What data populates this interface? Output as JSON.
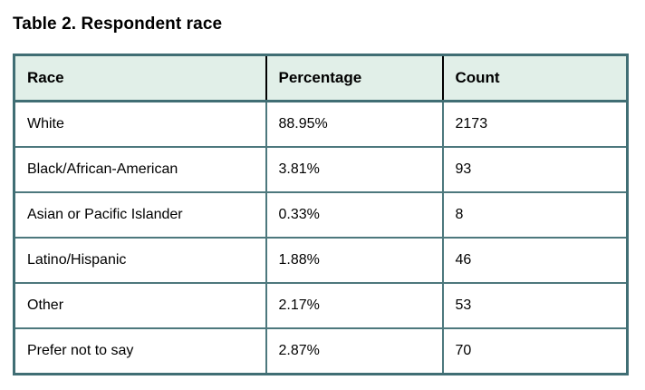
{
  "title": "Table 2. Respondent race",
  "table": {
    "columns": {
      "race": "Race",
      "percentage": "Percentage",
      "count": "Count"
    },
    "rows": [
      {
        "race": "White",
        "percentage": "88.95%",
        "count": "2173"
      },
      {
        "race": "Black/African-American",
        "percentage": "3.81%",
        "count": "93"
      },
      {
        "race": "Asian or Pacific Islander",
        "percentage": "0.33%",
        "count": "8"
      },
      {
        "race": "Latino/Hispanic",
        "percentage": "1.88%",
        "count": "46"
      },
      {
        "race": "Other",
        "percentage": "2.17%",
        "count": "53"
      },
      {
        "race": "Prefer not to say",
        "percentage": "2.87%",
        "count": "70"
      }
    ]
  },
  "colors": {
    "border_teal": "#406e74",
    "header_background": "#e1efe8",
    "header_cell_divider": "#000000",
    "text": "#000000"
  }
}
